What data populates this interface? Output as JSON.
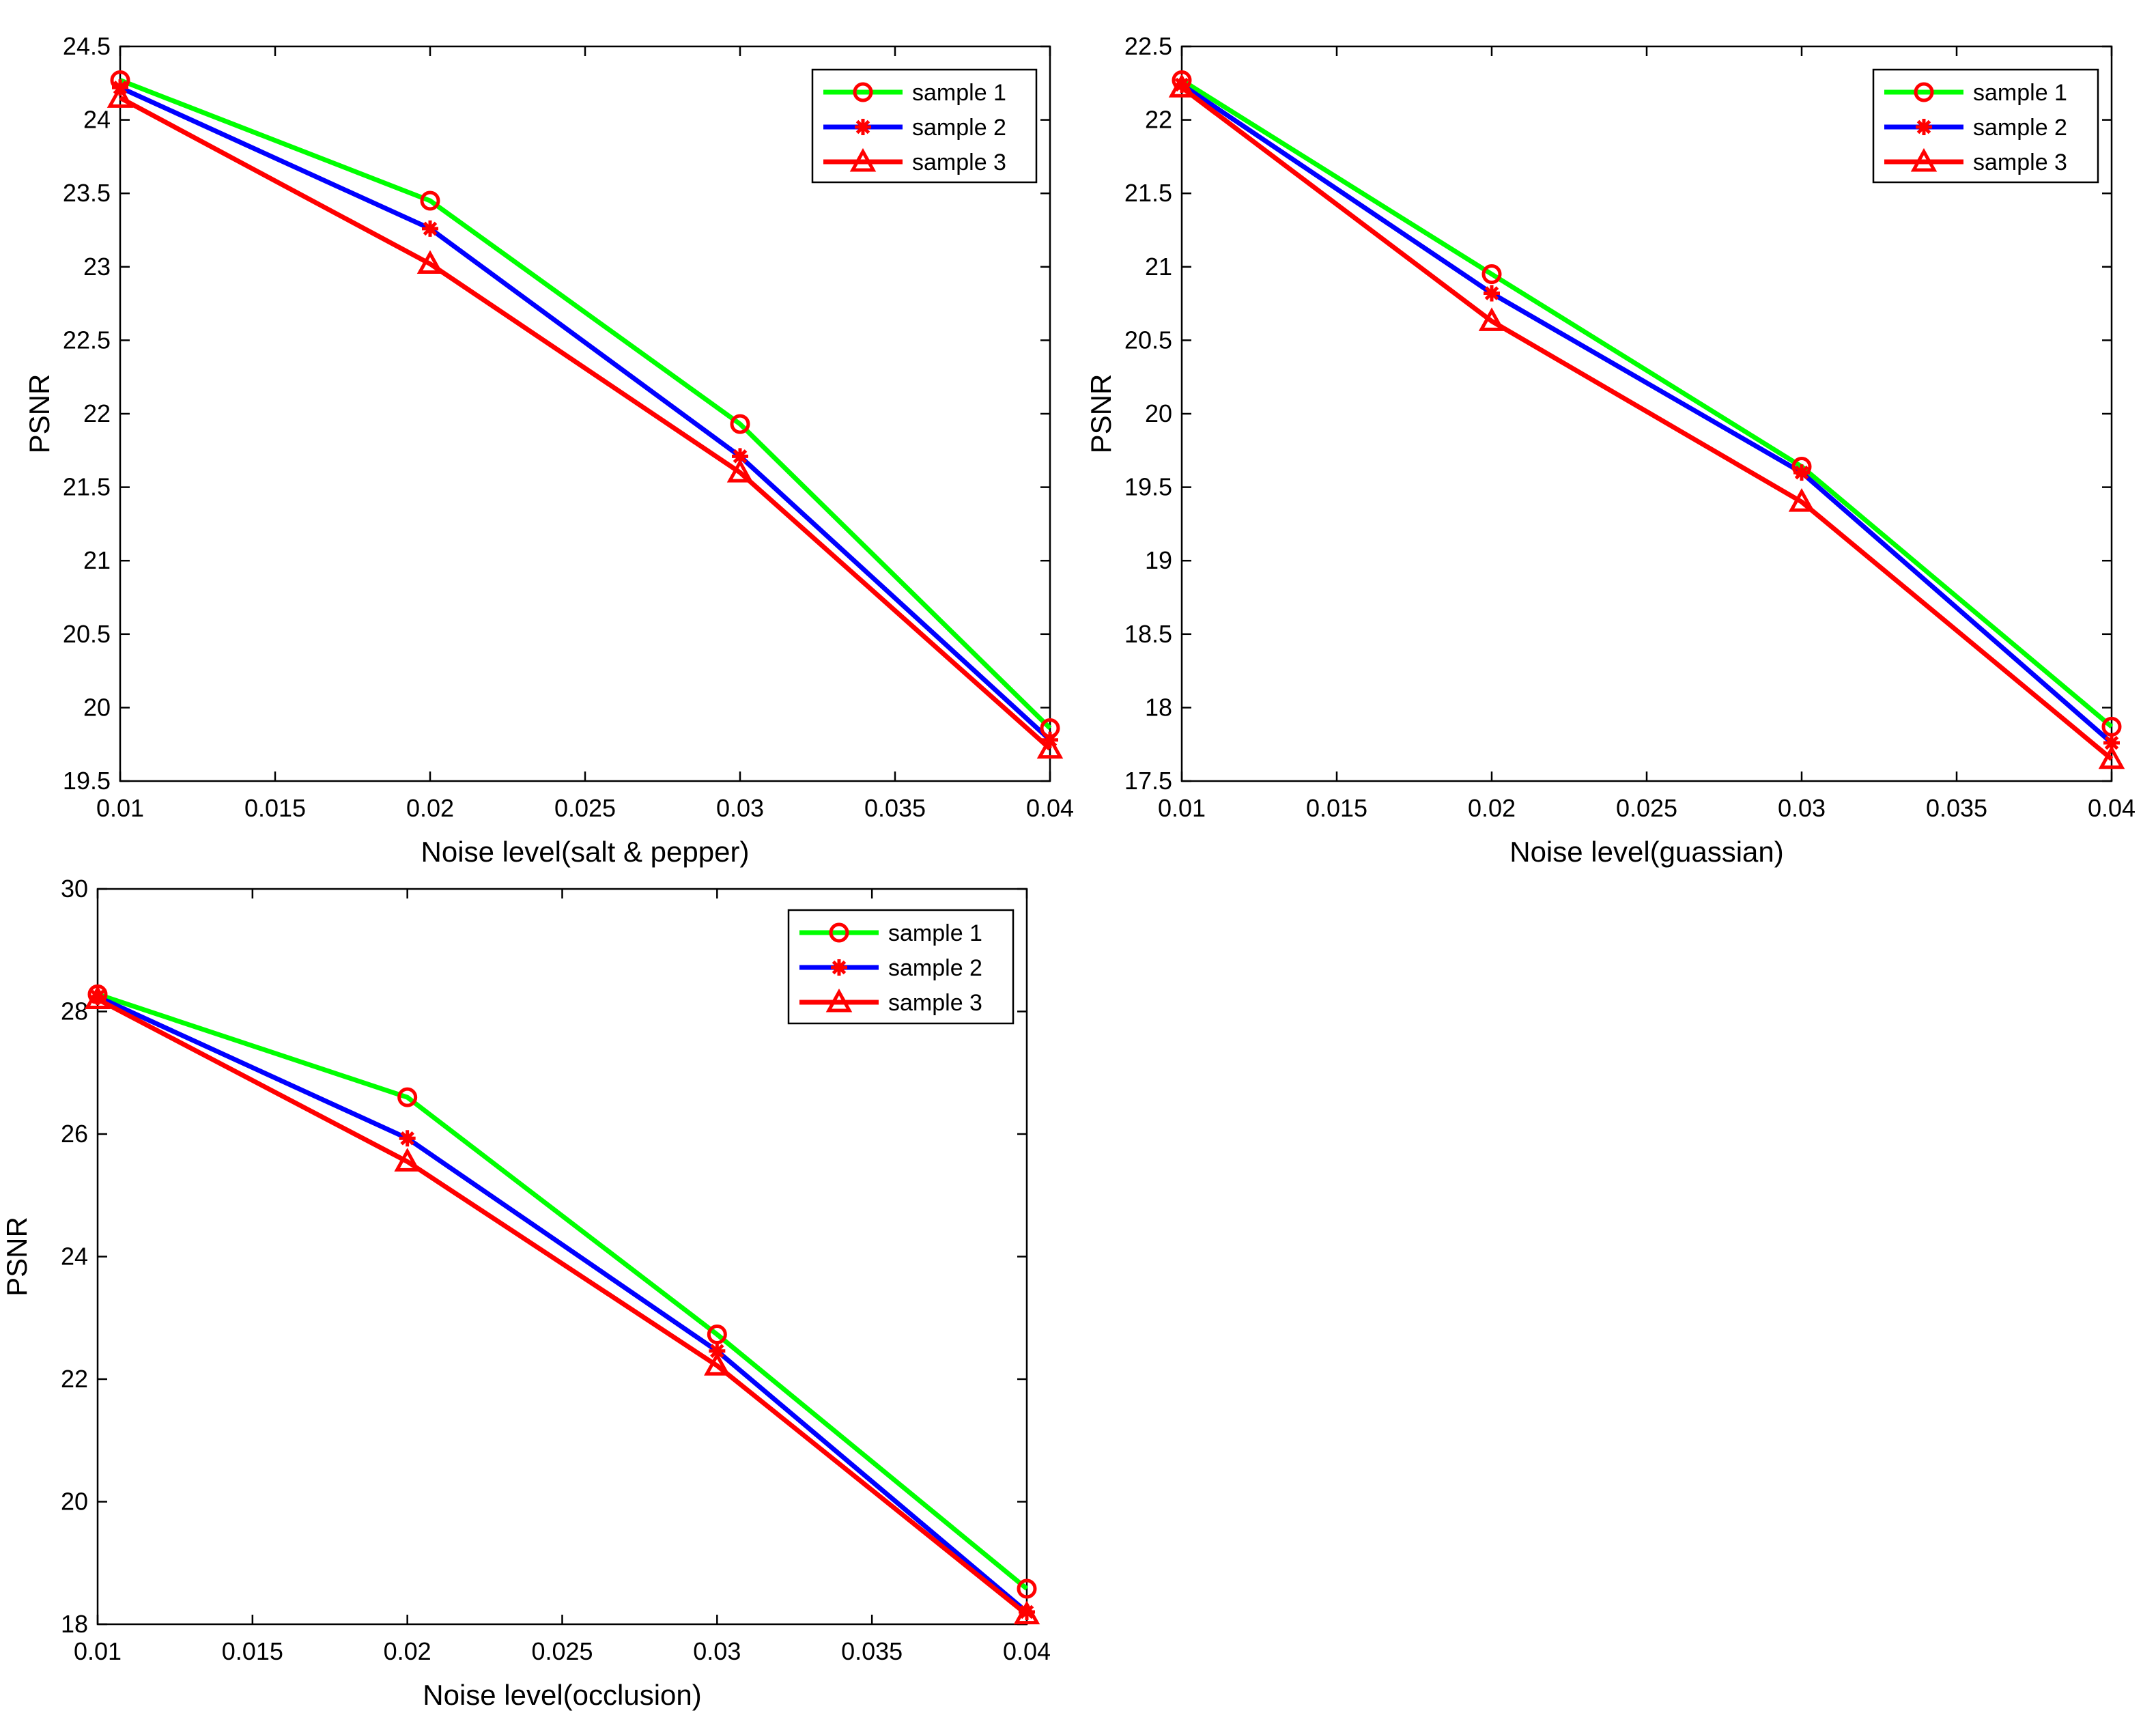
{
  "chart_data": [
    {
      "type": "line",
      "title": "",
      "xlabel": "Noise level(salt & pepper)",
      "ylabel": "PSNR",
      "x": [
        0.01,
        0.02,
        0.03,
        0.04
      ],
      "xlim": [
        0.01,
        0.04
      ],
      "ylim": [
        19.5,
        24.5
      ],
      "xticks": [
        "0.01",
        "0.015",
        "0.02",
        "0.025",
        "0.03",
        "0.035",
        "0.04"
      ],
      "yticks": [
        "19.5",
        "20",
        "20.5",
        "21",
        "21.5",
        "22",
        "22.5",
        "23",
        "23.5",
        "24",
        "24.5"
      ],
      "grid": false,
      "legend_position": "top-right",
      "series": [
        {
          "name": "sample 1",
          "values": [
            24.27,
            23.45,
            21.93,
            19.86
          ],
          "line_color": "#00ff00",
          "marker": "circle"
        },
        {
          "name": "sample 2",
          "values": [
            24.22,
            23.26,
            21.71,
            19.78
          ],
          "line_color": "#0000ff",
          "marker": "asterisk"
        },
        {
          "name": "sample 3",
          "values": [
            24.15,
            23.02,
            21.6,
            19.72
          ],
          "line_color": "#ff0000",
          "marker": "triangle"
        }
      ]
    },
    {
      "type": "line",
      "title": "",
      "xlabel": "Noise level(guassian)",
      "ylabel": "PSNR",
      "x": [
        0.01,
        0.02,
        0.03,
        0.04
      ],
      "xlim": [
        0.01,
        0.04
      ],
      "ylim": [
        17.5,
        22.5
      ],
      "xticks": [
        "0.01",
        "0.015",
        "0.02",
        "0.025",
        "0.03",
        "0.035",
        "0.04"
      ],
      "yticks": [
        "17.5",
        "18",
        "18.5",
        "19",
        "19.5",
        "20",
        "20.5",
        "21",
        "21.5",
        "22",
        "22.5"
      ],
      "grid": false,
      "legend_position": "top-right",
      "series": [
        {
          "name": "sample 1",
          "values": [
            22.27,
            20.95,
            19.64,
            17.87
          ],
          "line_color": "#00ff00",
          "marker": "circle"
        },
        {
          "name": "sample 2",
          "values": [
            22.24,
            20.82,
            19.6,
            17.76
          ],
          "line_color": "#0000ff",
          "marker": "asterisk"
        },
        {
          "name": "sample 3",
          "values": [
            22.22,
            20.63,
            19.4,
            17.65
          ],
          "line_color": "#ff0000",
          "marker": "triangle"
        }
      ]
    },
    {
      "type": "line",
      "title": "",
      "xlabel": "Noise level(occlusion)",
      "ylabel": "PSNR",
      "x": [
        0.01,
        0.02,
        0.03,
        0.04
      ],
      "xlim": [
        0.01,
        0.04
      ],
      "ylim": [
        18,
        30
      ],
      "xticks": [
        "0.01",
        "0.015",
        "0.02",
        "0.025",
        "0.03",
        "0.035",
        "0.04"
      ],
      "yticks": [
        "18",
        "20",
        "22",
        "24",
        "26",
        "28",
        "30"
      ],
      "grid": false,
      "legend_position": "top-right",
      "series": [
        {
          "name": "sample 1",
          "values": [
            28.28,
            26.6,
            22.73,
            18.58
          ],
          "line_color": "#00ff00",
          "marker": "circle"
        },
        {
          "name": "sample 2",
          "values": [
            28.24,
            25.93,
            22.46,
            18.2
          ],
          "line_color": "#0000ff",
          "marker": "asterisk"
        },
        {
          "name": "sample 3",
          "values": [
            28.2,
            25.55,
            22.22,
            18.16
          ],
          "line_color": "#ff0000",
          "marker": "triangle"
        }
      ]
    }
  ],
  "colors": {
    "marker": "#ff0000",
    "axes": "#000000",
    "background": "#ffffff"
  }
}
